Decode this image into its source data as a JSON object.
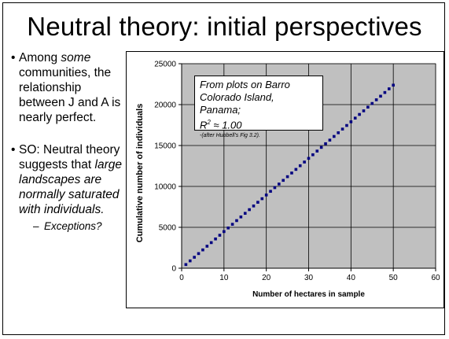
{
  "slide": {
    "title": "Neutral theory: initial perspectives",
    "bullet1": {
      "pre": "Among ",
      "em": "some",
      "post": " communities, the relationship between J and A is nearly perfect."
    },
    "bullet2": {
      "pre": "SO: Neutral theory suggests that ",
      "em": "large landscapes are normally saturated with individuals."
    },
    "sub_bullet": "Exceptions?",
    "bullet_glyph": "•",
    "dash_glyph": "–"
  },
  "annotation": {
    "line1": "From plots on Barro Colorado Island, Panama;",
    "r2_prefix": "R",
    "r2_sup": "2",
    "r2_value": " ≈ 1.00",
    "source": "-(after Hubbell’s Fig 3.2)."
  },
  "chart_data": {
    "type": "scatter",
    "xlabel": "Number of hectares in sample",
    "ylabel": "Cumulative number of individuals",
    "xlim": [
      0,
      60
    ],
    "ylim": [
      0,
      25000
    ],
    "xticks": [
      0,
      10,
      20,
      30,
      40,
      50,
      60
    ],
    "yticks": [
      0,
      5000,
      10000,
      15000,
      20000,
      25000
    ],
    "grid": true,
    "plot_background": "#c0c0c0",
    "marker_color": "#000080",
    "x": [
      1,
      2,
      3,
      4,
      5,
      6,
      7,
      8,
      9,
      10,
      11,
      12,
      13,
      14,
      15,
      16,
      17,
      18,
      19,
      20,
      21,
      22,
      23,
      24,
      25,
      26,
      27,
      28,
      29,
      30,
      31,
      32,
      33,
      34,
      35,
      36,
      37,
      38,
      39,
      40,
      41,
      42,
      43,
      44,
      45,
      46,
      47,
      48,
      49,
      50
    ],
    "y": [
      450,
      900,
      1340,
      1790,
      2240,
      2690,
      3130,
      3580,
      4030,
      4480,
      4920,
      5370,
      5820,
      6270,
      6710,
      7160,
      7610,
      8060,
      8500,
      8950,
      9400,
      9850,
      10290,
      10740,
      11190,
      11640,
      12080,
      12530,
      12980,
      13430,
      13870,
      14320,
      14770,
      15220,
      15660,
      16110,
      16560,
      17010,
      17450,
      17900,
      18350,
      18800,
      19240,
      19690,
      20140,
      20590,
      21030,
      21480,
      21930,
      22380
    ]
  }
}
